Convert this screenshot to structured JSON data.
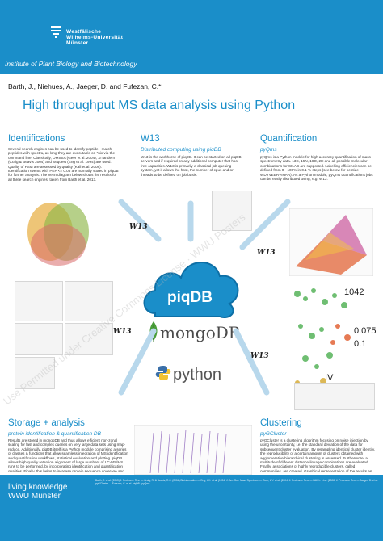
{
  "header": {
    "university": "Westfälische\nWilhelms-Universität\nMünster",
    "institute": "Institute of Plant Biology and Biotechnology"
  },
  "authors": "Barth, J., Niehues, A., Jaeger, D. and Fufezan, C.*",
  "title": "High throughput MS data analysis using Python",
  "sections": {
    "identifications": {
      "title": "Identifications",
      "body": "Several search engines can be used to identify peptide - match peptides with spectra, as long they are executable on *nix via the command line. Classically, OMSSA (Geer et al. 2004), X!Tandem (Craig & Beavis 2004) and Sequest (Eng et al. 1994) are used. Quality of PSM are assessed by quality (Käll et al. 2008). Identification events with PEP <= 0.05 are normally stored in piqDB for further analysis. The Venn diagram below shows the results for all three search engines, taken from Barth et al. 2013."
    },
    "w13": {
      "title": "W13",
      "subtitle": "Distributed computing using piqDB",
      "body": "W13 is the workhorse of piqDB. It can be started on all piqDB servers and if required on any additional computer that has free capacities. W13 is primarily a classical job queuing system, yet it allows the host, the number of cpus and or threads to be defined on job basis."
    },
    "quantification": {
      "title": "Quantification",
      "subtitle": "pyQms",
      "body": "pyQms is a Python module for high accuracy quantification of mass spectrometry data. 13C, 15N, 18O, 2H and all possible molecular combinations for SILAC are supported. Labelling efficiencies can be defined from 0 - 100% in 0.1 % steps (see below for peptide WDYVEERVIHAR). As a Python module, pyQms quantifications jobs can be easily distributed using, e.g. W13."
    },
    "storage": {
      "title": "Storage + analysis",
      "subtitle": "protein identification & quantification DB",
      "body": "Results are stored in mongoDB and thus allows efficient non-zonal scaling for fast and complex queries on very large data sets using map-reduce. Additionally, piqDB itself is a Python module comprising a series of classes & functions that allow seamless integration of MS identification and quantification workflows, statistical evaluation and plotting. piqDB allows high quality retention alignment of large numbers of LC-MS/MS runs to be performed, by incorporating identification and quantification qualities. Finally, this helps to increase protein sequence coverage and the coverage of all experimental conditions measured."
    },
    "clustering": {
      "title": "Clustering",
      "subtitle": "pyGCluster",
      "body": "pyGCluster is a clustering algorithm focusing on noise injection by using the uncertainty, i.e. the standard deviation of the data for subsequent cluster evaluation. By resampling identical cluster identity, the reproducibility of a certain amount of clusters obtained with agglomerative hierarchical clustering is assessed. Furthermore, a multitude of different distance-linkage combinations are evaluated. Finally, associations of highly reproducible clusters, called communities, are created. Graphical representation of the results as node maps and heat maps is implemented."
    }
  },
  "center": {
    "cloud_label": "piqDB",
    "mongo_label": "mongoDB",
    "python_label": "python",
    "arrow_label": "W13"
  },
  "cluster_numbers": {
    "n1": "1042",
    "n2": "0.075",
    "n3": "0.1",
    "n4": "IV"
  },
  "footer": {
    "brand": "living.knowledge\nWWU Münster",
    "references": "Barth, J. et al. (2013) J. Proteome Res. — Craig, R. & Beavis, R.C. (2004) Bioinformatics — Eng, J.K. et al. (1994) J. Am. Soc. Mass Spectrom. — Geer, L.Y. et al. (2004) J. Proteome Res. — Käll, L. et al. (2008) J. Proteome Res. — Jaeger, D. et al. pyGCluster — Fufezan, C. et al. piqDB / pyQms."
  },
  "watermark": "Use Permitted under Creative Commons License  ·  WWU Posters"
}
